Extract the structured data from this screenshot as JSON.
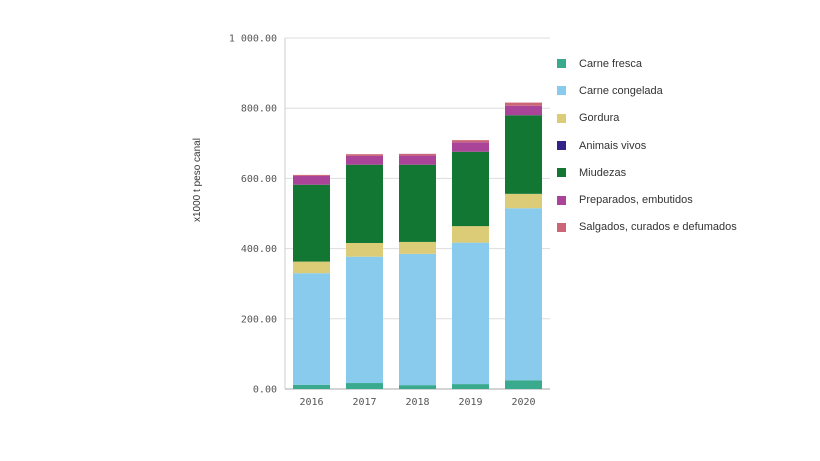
{
  "chart_data": {
    "type": "bar",
    "stacked": true,
    "title": "",
    "xlabel": "",
    "ylabel": "x1000 t peso canal",
    "ylim": [
      0,
      1000
    ],
    "yticks": [
      "0.00",
      "200.00",
      "400.00",
      "600.00",
      "800.00",
      "1 000.00"
    ],
    "ytick_values": [
      0,
      200,
      400,
      600,
      800,
      1000
    ],
    "grid": true,
    "legend_position": "right",
    "categories": [
      "2016",
      "2017",
      "2018",
      "2019",
      "2020"
    ],
    "series": [
      {
        "name": "Carne fresca",
        "color": "#3aaa8f",
        "values": [
          12,
          17,
          11,
          14,
          25
        ]
      },
      {
        "name": "Carne congelada",
        "color": "#88cbec",
        "values": [
          318,
          360,
          374,
          403,
          490
        ]
      },
      {
        "name": "Gordura",
        "color": "#ddcc77",
        "values": [
          33,
          39,
          34,
          47,
          41
        ]
      },
      {
        "name": "Animais vivos",
        "color": "#332288",
        "values": [
          0,
          0,
          0,
          0,
          0
        ]
      },
      {
        "name": "Miudezas",
        "color": "#117733",
        "values": [
          219,
          223,
          220,
          212,
          224
        ]
      },
      {
        "name": "Preparados, embutidos",
        "color": "#aa4499",
        "values": [
          25,
          25,
          26,
          27,
          27
        ]
      },
      {
        "name": "Salgados, curados e defumados",
        "color": "#cc6677",
        "values": [
          3,
          5,
          5,
          6,
          9
        ]
      }
    ]
  }
}
